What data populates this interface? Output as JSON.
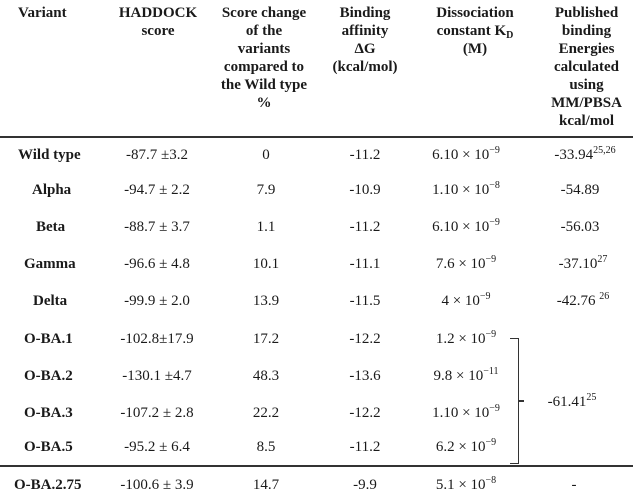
{
  "headers": {
    "variant": "Variant",
    "haddock": [
      "HADDOCK",
      "score"
    ],
    "score_change": [
      "Score change",
      "of the",
      "variants",
      "compared to",
      "the Wild type",
      "%"
    ],
    "binding": [
      "Binding",
      "affinity",
      "ΔG",
      "(kcal/mol)"
    ],
    "kd_line1": "Dissociation",
    "kd_line2": "constant  K",
    "kd_sub": "D",
    "kd_line3": "(M)",
    "published": [
      "Published",
      "binding",
      "Energies",
      "calculated",
      "using",
      "MM/PBSA",
      "kcal/mol"
    ]
  },
  "rows": [
    {
      "variant": "Wild type",
      "haddock": "-87.7 ±3.2",
      "change": "0",
      "dg": "-11.2",
      "kd_mant": "6.10 × 10",
      "kd_exp": "−9",
      "pub": "-33.94",
      "pub_sup": "25,26"
    },
    {
      "variant": "Alpha",
      "haddock": "-94.7 ± 2.2",
      "change": "7.9",
      "dg": "-10.9",
      "kd_mant": "1.10 × 10",
      "kd_exp": "−8",
      "pub": "-54.89",
      "pub_sup": ""
    },
    {
      "variant": "Beta",
      "haddock": "-88.7 ± 3.7",
      "change": "1.1",
      "dg": "-11.2",
      "kd_mant": "6.10 × 10",
      "kd_exp": "−9",
      "pub": "-56.03",
      "pub_sup": ""
    },
    {
      "variant": "Gamma",
      "haddock": "-96.6 ± 4.8",
      "change": "10.1",
      "dg": "-11.1",
      "kd_mant": "7.6 × 10",
      "kd_exp": "−9",
      "pub": "-37.10",
      "pub_sup": "27"
    },
    {
      "variant": "Delta",
      "haddock": "-99.9 ± 2.0",
      "change": "13.9",
      "dg": "-11.5",
      "kd_mant": "4 × 10",
      "kd_exp": "−9",
      "pub": "-42.76 ",
      "pub_sup": "26"
    },
    {
      "variant": "O-BA.1",
      "haddock": "-102.8±17.9",
      "change": "17.2",
      "dg": "-12.2",
      "kd_mant": "1.2 × 10",
      "kd_exp": "−9",
      "pub": "",
      "pub_sup": ""
    },
    {
      "variant": "O-BA.2",
      "haddock": "-130.1 ±4.7",
      "change": "48.3",
      "dg": "-13.6",
      "kd_mant": "9.8 × 10",
      "kd_exp": "−11",
      "pub": "",
      "pub_sup": ""
    },
    {
      "variant": "O-BA.3",
      "haddock": "-107.2 ± 2.8",
      "change": "22.2",
      "dg": "-12.2",
      "kd_mant": "1.10 × 10",
      "kd_exp": "−9",
      "pub": "",
      "pub_sup": ""
    },
    {
      "variant": "O-BA.5",
      "haddock": "-95.2 ± 6.4",
      "change": "8.5",
      "dg": "-11.2",
      "kd_mant": "6.2 × 10",
      "kd_exp": "−9",
      "pub": "",
      "pub_sup": ""
    },
    {
      "variant": "O-BA.2.75",
      "haddock": "-100.6 ± 3.9",
      "change": "14.7",
      "dg": "-9.9",
      "kd_mant": "5.1 × 10",
      "kd_exp": "−8",
      "pub": "-",
      "pub_sup": ""
    }
  ],
  "omicron_group": {
    "pub": "-61.41",
    "pub_sup": "25"
  }
}
